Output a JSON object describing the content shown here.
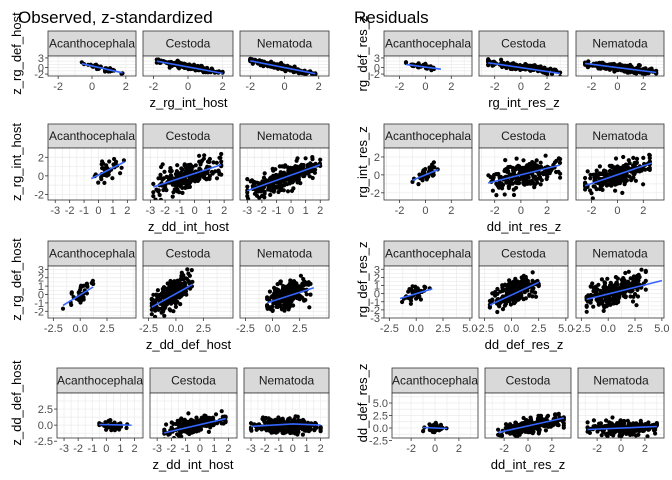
{
  "titles": {
    "left": "Observed, z-standardized",
    "right": "Residuals"
  },
  "facets": [
    "Acanthocephala",
    "Cestoda",
    "Nematoda"
  ],
  "colors": {
    "strip_bg": "#d9d9d9",
    "panel_border": "#333333",
    "grid": "#ebebeb",
    "points": "#000000",
    "fit_line": "#3366ff"
  },
  "chart_data": [
    {
      "id": "obs-row1",
      "type": "scatter",
      "xlabel": "z_rg_int_host",
      "ylabel": "z_rg_def_host",
      "xlim": [
        -2.6,
        2.6
      ],
      "ylim": [
        -2.6,
        3.6
      ],
      "xticks": [
        -2,
        0,
        2
      ],
      "yticks": [
        -2,
        0,
        3
      ],
      "ytick_labels": [
        "-2",
        "0",
        "3"
      ],
      "panels": [
        {
          "facet": "Acanthocephala",
          "n": 40,
          "x_range": [
            -0.6,
            1.8
          ],
          "slope": -1.2,
          "intercept": 0.5,
          "noise": 0.35,
          "fit": [
            [
              -0.6,
              1.2
            ],
            [
              1.8,
              -1.6
            ]
          ]
        },
        {
          "facet": "Cestoda",
          "n": 200,
          "x_range": [
            -1.8,
            2.0
          ],
          "slope": -1.0,
          "intercept": 0.3,
          "noise": 0.4,
          "fit": [
            [
              -1.8,
              2.0
            ],
            [
              2.0,
              -1.8
            ]
          ]
        },
        {
          "facet": "Nematoda",
          "n": 250,
          "x_range": [
            -2.0,
            1.8
          ],
          "slope": -1.1,
          "intercept": 0.0,
          "noise": 0.4,
          "fit": [
            [
              -2.0,
              2.1
            ],
            [
              1.8,
              -1.9
            ]
          ]
        }
      ]
    },
    {
      "id": "obs-row2",
      "type": "scatter",
      "xlabel": "z_dd_int_host",
      "ylabel": "z_rg_int_host",
      "xlim": [
        -3.5,
        2.6
      ],
      "ylim": [
        -2.6,
        3.0
      ],
      "xticks": [
        -3,
        -2,
        -1,
        0,
        1,
        2
      ],
      "yticks": [
        -2,
        0,
        2
      ],
      "ytick_labels": [
        "-2",
        "0",
        "2"
      ],
      "panels": [
        {
          "facet": "Acanthocephala",
          "n": 40,
          "x_range": [
            -0.5,
            1.8
          ],
          "slope": 0.8,
          "intercept": 0.1,
          "noise": 0.45,
          "fit": [
            [
              -0.5,
              -0.3
            ],
            [
              1.8,
              1.5
            ]
          ]
        },
        {
          "facet": "Cestoda",
          "n": 220,
          "x_range": [
            -2.8,
            1.8
          ],
          "slope": 0.5,
          "intercept": 0.2,
          "noise": 0.75,
          "fit": [
            [
              -2.8,
              -1.2
            ],
            [
              1.8,
              1.2
            ]
          ]
        },
        {
          "facet": "Nematoda",
          "n": 260,
          "x_range": [
            -3.0,
            2.0
          ],
          "slope": 0.6,
          "intercept": 0.0,
          "noise": 0.6,
          "fit": [
            [
              -3.0,
              -1.6
            ],
            [
              2.0,
              1.2
            ]
          ]
        }
      ]
    },
    {
      "id": "obs-row3",
      "type": "scatter",
      "xlabel": "z_dd_def_host",
      "ylabel": "z_rg_def_host",
      "xlim": [
        -3.0,
        5.2
      ],
      "ylim": [
        -2.8,
        3.4
      ],
      "xticks": [
        -2.5,
        0,
        2.5
      ],
      "xtick_labels": [
        "-2.5",
        "0.0",
        "2.5"
      ],
      "yticks": [
        -2,
        -1,
        0,
        1,
        2,
        3
      ],
      "ytick_labels": [
        "-2",
        "-1",
        "0",
        "1",
        "2",
        "3"
      ],
      "panels": [
        {
          "facet": "Acanthocephala",
          "n": 40,
          "x_range": [
            -1.6,
            1.2
          ],
          "slope": 0.8,
          "intercept": 0.0,
          "noise": 0.5,
          "fit": [
            [
              -1.6,
              -1.3
            ],
            [
              1.2,
              0.9
            ]
          ]
        },
        {
          "facet": "Cestoda",
          "n": 220,
          "x_range": [
            -2.2,
            1.5
          ],
          "slope": 0.8,
          "intercept": 0.3,
          "noise": 0.8,
          "fit": [
            [
              -2.2,
              -1.5
            ],
            [
              1.5,
              1.2
            ]
          ]
        },
        {
          "facet": "Nematoda",
          "n": 260,
          "x_range": [
            -0.5,
            3.5
          ],
          "slope": 0.4,
          "intercept": -0.6,
          "noise": 0.8,
          "fit": [
            [
              -0.5,
              -1.0
            ],
            [
              3.8,
              0.8
            ]
          ]
        }
      ]
    },
    {
      "id": "obs-row4",
      "type": "scatter",
      "xlabel": "z_dd_int_host",
      "ylabel": "z_dd_def_host",
      "xlim": [
        -3.5,
        2.6
      ],
      "ylim": [
        -2.0,
        5.0
      ],
      "xticks": [
        -3,
        -2,
        -1,
        0,
        1,
        2
      ],
      "yticks": [
        -2.5,
        0,
        2.5
      ],
      "ytick_labels": [
        "-2.5",
        "0.0",
        "2.5"
      ],
      "panels": [
        {
          "facet": "Acanthocephala",
          "n": 40,
          "x_range": [
            -0.5,
            1.8
          ],
          "slope": 0.0,
          "intercept": 0.0,
          "noise": 0.5,
          "fit": [
            [
              -0.5,
              0.1
            ],
            [
              1.8,
              0.0
            ]
          ]
        },
        {
          "facet": "Cestoda",
          "n": 220,
          "x_range": [
            -2.5,
            1.8
          ],
          "slope": 0.5,
          "intercept": 0.2,
          "noise": 0.6,
          "fit": [
            [
              -2.5,
              -1.2
            ],
            [
              1.8,
              1.0
            ]
          ]
        },
        {
          "facet": "Nematoda",
          "n": 260,
          "x_range": [
            -3.0,
            2.0
          ],
          "slope": 0.0,
          "intercept": 0.0,
          "noise": 0.6,
          "fit": [
            [
              -3.0,
              -0.2
            ],
            [
              0.0,
              0.2
            ],
            [
              2.0,
              0.0
            ]
          ]
        }
      ]
    },
    {
      "id": "res-row1",
      "type": "scatter",
      "xlabel": "rg_int_res_z",
      "ylabel": "rg_def_res_z",
      "xlim": [
        -3.2,
        3.6
      ],
      "ylim": [
        -2.6,
        3.6
      ],
      "xticks": [
        -2,
        0,
        2
      ],
      "yticks": [
        -2,
        0,
        3
      ],
      "ytick_labels": [
        "-2",
        "0",
        "3"
      ],
      "panels": [
        {
          "facet": "Acanthocephala",
          "n": 40,
          "x_range": [
            -1.5,
            1.2
          ],
          "slope": -0.5,
          "intercept": 0.3,
          "noise": 0.4,
          "fit": [
            [
              -1.5,
              1.0
            ],
            [
              1.2,
              -0.5
            ]
          ]
        },
        {
          "facet": "Cestoda",
          "n": 200,
          "x_range": [
            -2.5,
            3.0
          ],
          "slope": -0.6,
          "intercept": 0.2,
          "noise": 0.5,
          "fit": [
            [
              -2.5,
              1.5
            ],
            [
              3.0,
              -1.8
            ]
          ]
        },
        {
          "facet": "Nematoda",
          "n": 250,
          "x_range": [
            -2.5,
            3.0
          ],
          "slope": -0.5,
          "intercept": 0.0,
          "noise": 0.5,
          "fit": [
            [
              -2.5,
              1.3
            ],
            [
              3.0,
              -1.5
            ]
          ]
        }
      ]
    },
    {
      "id": "res-row2",
      "type": "scatter",
      "xlabel": "dd_int_res_z",
      "ylabel": "rg_int_res_z",
      "xlim": [
        -3.2,
        3.6
      ],
      "ylim": [
        -2.8,
        3.0
      ],
      "xticks": [
        -2,
        0,
        2
      ],
      "yticks": [
        -2,
        0,
        2
      ],
      "ytick_labels": [
        "-2",
        "0",
        "2"
      ],
      "panels": [
        {
          "facet": "Acanthocephala",
          "n": 40,
          "x_range": [
            -1.0,
            1.0
          ],
          "slope": 0.8,
          "intercept": 0.0,
          "noise": 0.5,
          "fit": [
            [
              -1.0,
              -0.6
            ],
            [
              1.0,
              0.6
            ]
          ]
        },
        {
          "facet": "Cestoda",
          "n": 220,
          "x_range": [
            -2.5,
            3.0
          ],
          "slope": 0.35,
          "intercept": 0.0,
          "noise": 0.75,
          "fit": [
            [
              -2.5,
              -0.9
            ],
            [
              3.0,
              1.1
            ]
          ]
        },
        {
          "facet": "Nematoda",
          "n": 260,
          "x_range": [
            -2.5,
            2.5
          ],
          "slope": 0.5,
          "intercept": 0.0,
          "noise": 0.65,
          "fit": [
            [
              -2.5,
              -1.2
            ],
            [
              2.6,
              1.3
            ]
          ]
        }
      ]
    },
    {
      "id": "res-row3",
      "type": "scatter",
      "xlabel": "dd_def_res_z",
      "ylabel": "rg_def_res_z",
      "xlim": [
        -3.0,
        5.2
      ],
      "ylim": [
        -3.0,
        3.4
      ],
      "xticks": [
        -2.5,
        0,
        2.5,
        5
      ],
      "xtick_labels": [
        "-2.5",
        "0.0",
        "2.5",
        "5.0"
      ],
      "yticks": [
        -3,
        -2,
        -1,
        0,
        1,
        2,
        3
      ],
      "ytick_labels": [
        "-3",
        "-2",
        "-1",
        "0",
        "1",
        "2",
        "3"
      ],
      "panels": [
        {
          "facet": "Acanthocephala",
          "n": 40,
          "x_range": [
            -1.5,
            1.5
          ],
          "slope": 0.5,
          "intercept": 0.0,
          "noise": 0.5,
          "fit": [
            [
              -1.5,
              -0.6
            ],
            [
              1.5,
              0.6
            ]
          ]
        },
        {
          "facet": "Cestoda",
          "n": 220,
          "x_range": [
            -2.0,
            2.5
          ],
          "slope": 0.6,
          "intercept": 0.0,
          "noise": 0.8,
          "fit": [
            [
              -2.0,
              -1.4
            ],
            [
              2.5,
              1.4
            ]
          ]
        },
        {
          "facet": "Nematoda",
          "n": 260,
          "x_range": [
            -2.0,
            3.5
          ],
          "slope": 0.35,
          "intercept": 0.0,
          "noise": 0.8,
          "fit": [
            [
              -2.0,
              -0.7
            ],
            [
              5.0,
              1.6
            ]
          ]
        }
      ]
    },
    {
      "id": "res-row4",
      "type": "scatter",
      "xlabel": "dd_int_res_z",
      "ylabel": "dd_def_res_z",
      "xlim": [
        -3.6,
        3.6
      ],
      "ylim": [
        -2.0,
        7.0
      ],
      "xticks": [
        -2,
        0,
        2
      ],
      "yticks": [
        -2.5,
        0,
        2.5,
        5
      ],
      "ytick_labels": [
        "-2.5",
        "0.0",
        "2.5",
        "5.0"
      ],
      "panels": [
        {
          "facet": "Acanthocephala",
          "n": 40,
          "x_range": [
            -1.0,
            1.0
          ],
          "slope": 0.0,
          "intercept": 0.0,
          "noise": 0.5,
          "fit": [
            [
              -1.0,
              0.1
            ],
            [
              1.0,
              -0.1
            ]
          ]
        },
        {
          "facet": "Cestoda",
          "n": 220,
          "x_range": [
            -2.5,
            3.0
          ],
          "slope": 0.5,
          "intercept": 0.3,
          "noise": 0.8,
          "fit": [
            [
              -2.5,
              -0.9
            ],
            [
              3.0,
              2.0
            ]
          ]
        },
        {
          "facet": "Nematoda",
          "n": 260,
          "x_range": [
            -2.8,
            3.0
          ],
          "slope": 0.0,
          "intercept": 0.0,
          "noise": 0.7,
          "fit": [
            [
              -2.8,
              -0.3
            ],
            [
              3.0,
              0.3
            ]
          ]
        }
      ]
    }
  ]
}
